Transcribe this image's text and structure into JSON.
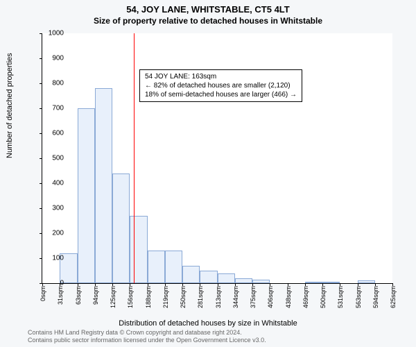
{
  "title_main": "54, JOY LANE, WHITSTABLE, CT5 4LT",
  "title_sub": "Size of property relative to detached houses in Whitstable",
  "ylabel": "Number of detached properties",
  "xlabel": "Distribution of detached houses by size in Whitstable",
  "info_box": {
    "line1": "54 JOY LANE: 163sqm",
    "line2": "← 82% of detached houses are smaller (2,120)",
    "line3": "18% of semi-detached houses are larger (466) →"
  },
  "footer_line1": "Contains HM Land Registry data © Crown copyright and database right 2024.",
  "footer_line2": "Contains public sector information licensed under the Open Government Licence v3.0.",
  "chart": {
    "type": "histogram",
    "background_color": "#ffffff",
    "plot_background": "#f5f7f9",
    "bar_fill": "#e8f0fb",
    "bar_border": "#8aa9d6",
    "ref_line_color": "#ff0000",
    "ref_value": 163,
    "ylim": [
      0,
      1000
    ],
    "ytick_step": 100,
    "xtick_labels": [
      "0sqm",
      "31sqm",
      "63sqm",
      "94sqm",
      "125sqm",
      "156sqm",
      "188sqm",
      "219sqm",
      "250sqm",
      "281sqm",
      "313sqm",
      "344sqm",
      "375sqm",
      "406sqm",
      "438sqm",
      "469sqm",
      "500sqm",
      "531sqm",
      "563sqm",
      "594sqm",
      "625sqm"
    ],
    "xtick_values": [
      0,
      31,
      63,
      94,
      125,
      156,
      188,
      219,
      250,
      281,
      313,
      344,
      375,
      406,
      438,
      469,
      500,
      531,
      563,
      594,
      625
    ],
    "xmax": 625,
    "bin_width": 31.25,
    "values": [
      0,
      120,
      700,
      780,
      440,
      270,
      130,
      130,
      70,
      50,
      40,
      20,
      15,
      0,
      0,
      5,
      5,
      0,
      10,
      0
    ],
    "title_fontsize": 13,
    "sub_fontsize": 12,
    "label_fontsize": 11,
    "tick_fontsize": 10
  }
}
